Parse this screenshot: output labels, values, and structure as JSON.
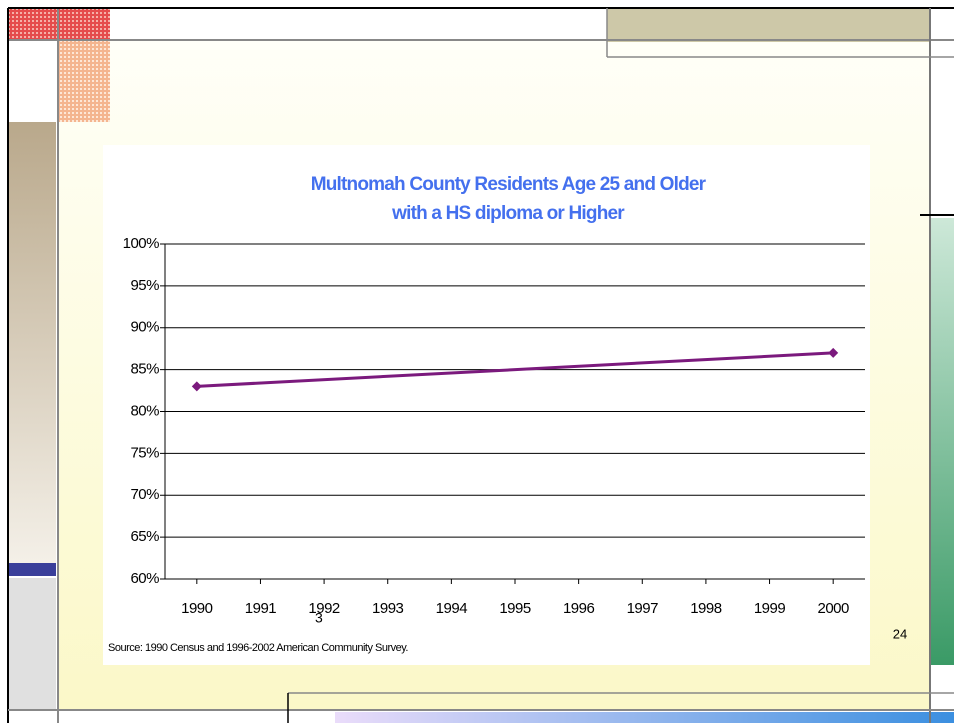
{
  "chart_data": {
    "type": "line",
    "title": "Multnomah County Residents Age 25 and Older",
    "subtitle": "with a HS diploma or Higher",
    "x": [
      1990,
      2000
    ],
    "series": [
      {
        "name": "Residents with HS diploma or higher",
        "color": "#7b1a7d",
        "values": [
          83,
          87
        ]
      }
    ],
    "xlim": [
      1989.5,
      2000.5
    ],
    "xticks": [
      1990,
      1991,
      1992,
      1993,
      1994,
      1995,
      1996,
      1997,
      1998,
      1999,
      2000
    ],
    "ylim": [
      60,
      100
    ],
    "yticks": [
      {
        "value": 60,
        "label": "60%"
      },
      {
        "value": 65,
        "label": "65%"
      },
      {
        "value": 70,
        "label": "70%"
      },
      {
        "value": 75,
        "label": "75%"
      },
      {
        "value": 80,
        "label": "80%"
      },
      {
        "value": 85,
        "label": "85%"
      },
      {
        "value": 90,
        "label": "90%"
      },
      {
        "value": 95,
        "label": "95%"
      },
      {
        "value": 100,
        "label": "100%"
      }
    ],
    "grid": true,
    "source": "Source: 1990 Census and 1996-2002 American Community Survey.",
    "stray_label": "3",
    "page_number": "24"
  }
}
